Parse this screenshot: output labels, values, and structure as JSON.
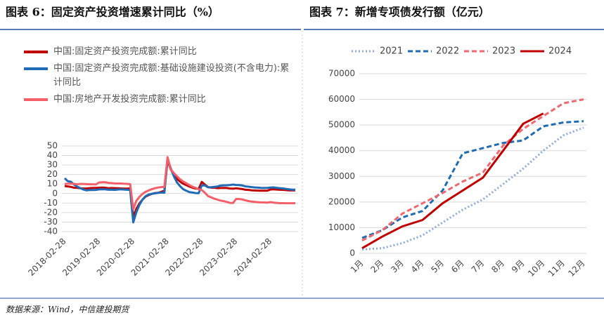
{
  "chart_data": [
    {
      "type": "line",
      "title": "图表 6：固定资产投资增速累计同比（%）",
      "categories": [
        "2018-02-28",
        null,
        null,
        null,
        null,
        null,
        null,
        null,
        null,
        null,
        null,
        "2019-02-28",
        null,
        null,
        null,
        null,
        null,
        null,
        null,
        null,
        null,
        null,
        "2020-02-28",
        null,
        null,
        null,
        null,
        null,
        null,
        null,
        null,
        null,
        null,
        "2021-02-28",
        null,
        null,
        null,
        null,
        null,
        null,
        null,
        null,
        null,
        null,
        "2022-02-28",
        null,
        null,
        null,
        null,
        null,
        null,
        null,
        null,
        null,
        null,
        "2023-02-28",
        null,
        null,
        null,
        null,
        null,
        null,
        null,
        null,
        null,
        null,
        "2024-02-28",
        null,
        null,
        null,
        null,
        null,
        null,
        null,
        null
      ],
      "series": [
        {
          "name": "中国:固定资产投资完成额:累计同比",
          "color": "#c00000",
          "style": "solid",
          "values": [
            7.9,
            7.5,
            7.0,
            6.1,
            6.0,
            5.5,
            5.3,
            5.4,
            5.7,
            5.9,
            5.9,
            6.1,
            6.3,
            6.1,
            5.6,
            5.8,
            5.7,
            5.5,
            5.4,
            5.2,
            5.2,
            5.4,
            -24.5,
            -16.1,
            -10.3,
            -6.3,
            -3.1,
            -1.6,
            -0.3,
            0.5,
            0.8,
            1.8,
            2.9,
            35.0,
            25.6,
            19.9,
            15.4,
            12.6,
            10.3,
            8.9,
            7.3,
            6.1,
            5.2,
            4.9,
            12.2,
            9.3,
            6.8,
            6.2,
            6.1,
            5.7,
            5.8,
            5.9,
            5.8,
            5.3,
            5.1,
            5.5,
            5.1,
            4.7,
            4.0,
            3.8,
            3.4,
            3.2,
            3.1,
            2.9,
            2.9,
            3.0,
            4.2,
            4.5,
            4.2,
            4.0,
            3.9,
            3.6,
            3.4,
            3.4,
            3.4
          ]
        },
        {
          "name": "中国:固定资产投资完成额:基础设施建设投资(不含电力):累计同比",
          "color": "#1f6bb5",
          "style": "solid",
          "values": [
            16.1,
            13.0,
            12.4,
            9.4,
            7.3,
            5.7,
            4.2,
            3.3,
            3.7,
            3.7,
            3.8,
            4.3,
            4.4,
            4.4,
            4.0,
            4.1,
            3.8,
            4.2,
            4.5,
            4.2,
            4.0,
            3.8,
            -30.3,
            -19.7,
            -11.8,
            -6.3,
            -2.7,
            -1.0,
            -0.3,
            0.2,
            0.7,
            1.0,
            0.9,
            36.6,
            26.9,
            18.4,
            11.8,
            7.8,
            4.6,
            2.9,
            1.5,
            1.0,
            0.5,
            0.4,
            8.6,
            8.5,
            6.5,
            6.7,
            7.1,
            7.4,
            8.3,
            8.6,
            8.7,
            8.9,
            9.4,
            9.0,
            8.8,
            8.5,
            7.5,
            7.2,
            6.8,
            6.4,
            6.2,
            5.9,
            5.8,
            5.9,
            6.3,
            6.5,
            6.0,
            5.7,
            5.4,
            4.9,
            4.4,
            4.1,
            4.1
          ]
        },
        {
          "name": "中国:房地产开发投资完成额:累计同比",
          "color": "#f4606a",
          "style": "solid",
          "values": [
            9.9,
            10.4,
            10.3,
            10.2,
            9.7,
            10.2,
            10.1,
            9.9,
            9.7,
            9.7,
            9.5,
            11.6,
            11.8,
            11.9,
            11.2,
            10.9,
            10.6,
            10.5,
            10.5,
            10.3,
            10.2,
            9.9,
            -16.3,
            -7.7,
            -3.3,
            -0.3,
            1.9,
            3.4,
            4.6,
            5.6,
            6.3,
            6.8,
            7.0,
            38.3,
            25.6,
            21.6,
            18.3,
            15.0,
            12.7,
            10.9,
            8.8,
            7.2,
            6.0,
            4.4,
            3.7,
            0.7,
            -2.7,
            -4.0,
            -5.4,
            -6.4,
            -7.4,
            -8.0,
            -8.8,
            -9.8,
            -10.0,
            -5.7,
            -5.8,
            -6.2,
            -7.2,
            -7.9,
            -8.5,
            -8.8,
            -9.1,
            -9.3,
            -9.4,
            -9.6,
            -9.0,
            -9.5,
            -9.8,
            -10.1,
            -10.1,
            -10.2,
            -10.2,
            -10.2,
            -10.1
          ]
        }
      ],
      "ylim": [
        -40,
        50
      ],
      "yticks": [
        -40,
        -30,
        -20,
        -10,
        0,
        10,
        20,
        30,
        40,
        50
      ],
      "grid": true,
      "legend": "top"
    },
    {
      "type": "line",
      "title": "图表 7：新增专项债发行额（亿元）",
      "categories": [
        "1月",
        "2月",
        "3月",
        "4月",
        "5月",
        "6月",
        "7月",
        "8月",
        "9月",
        "10月",
        "11月",
        "12月"
      ],
      "series": [
        {
          "name": "2021",
          "color": "#8eaadb",
          "style": "dotted",
          "values": [
            1500,
            2000,
            4000,
            7000,
            12000,
            17000,
            21000,
            27000,
            33000,
            40000,
            46000,
            49000
          ]
        },
        {
          "name": "2022",
          "color": "#1f6bb5",
          "style": "dashed",
          "values": [
            6000,
            9000,
            14000,
            16500,
            24500,
            39000,
            41000,
            43000,
            44000,
            49500,
            51000,
            51500
          ]
        },
        {
          "name": "2023",
          "color": "#f0686e",
          "style": "dashed",
          "values": [
            5000,
            9000,
            15500,
            19500,
            23500,
            28000,
            31500,
            42000,
            48500,
            53500,
            58500,
            60000
          ]
        },
        {
          "name": "2024",
          "color": "#c00000",
          "style": "solid",
          "values": [
            2000,
            6500,
            10500,
            13000,
            19500,
            24500,
            29500,
            40000,
            50500,
            54500,
            null,
            null
          ]
        }
      ],
      "ylim": [
        0,
        70000
      ],
      "yticks": [
        0,
        10000,
        20000,
        30000,
        40000,
        50000,
        60000,
        70000
      ],
      "grid": true,
      "legend": "top"
    }
  ],
  "source": "数据来源：Wind，中信建投期货"
}
